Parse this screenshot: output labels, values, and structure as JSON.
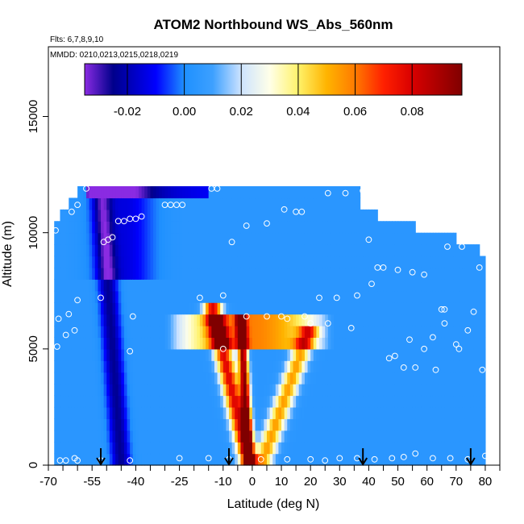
{
  "chart_data": {
    "type": "heatmap",
    "title": "ATOM2 Northbound WS_Abs_560nm",
    "subtitle": "Flts: 6,7,8,9,10",
    "annotation": "MMDD: 0210,0213,0215,0218,0219",
    "xlabel": "Latitude (deg N)",
    "ylabel": "Altitude (m)",
    "xlim": [
      -70,
      85
    ],
    "ylim": [
      0,
      18000
    ],
    "x_ticks": [
      "-70",
      "-55",
      "-40",
      "-25",
      "-10",
      "0",
      "10",
      "20",
      "30",
      "40",
      "50",
      "60",
      "70",
      "80"
    ],
    "x_tick_values": [
      -70,
      -55,
      -40,
      -25,
      -10,
      0,
      10,
      20,
      30,
      40,
      50,
      60,
      70,
      80
    ],
    "x_minor_ticks": [
      -65,
      -60,
      -50,
      -45,
      -35,
      -30,
      -20,
      -15,
      -5,
      5,
      15,
      25,
      35,
      45,
      55,
      65,
      75,
      85
    ],
    "y_ticks": [
      "0",
      "5000",
      "10000",
      "15000"
    ],
    "y_tick_values": [
      0,
      5000,
      10000,
      15000
    ],
    "colorbar": {
      "range": [
        -0.035,
        0.0975
      ],
      "ticks": [
        "-0.02",
        "0.00",
        "0.02",
        "0.04",
        "0.06",
        "0.08"
      ],
      "tick_values": [
        -0.02,
        0.0,
        0.02,
        0.04,
        0.06,
        0.08
      ],
      "lines": [
        -0.02,
        0.0,
        0.02,
        0.04,
        0.06,
        0.08
      ],
      "stops": [
        {
          "v": -0.035,
          "color": "#8a2be2"
        },
        {
          "v": -0.025,
          "color": "#00008b"
        },
        {
          "v": -0.01,
          "color": "#0000ff"
        },
        {
          "v": 0.0,
          "color": "#1e90ff"
        },
        {
          "v": 0.01,
          "color": "#3da0ff"
        },
        {
          "v": 0.02,
          "color": "#cde3ff"
        },
        {
          "v": 0.03,
          "color": "#ffffe8"
        },
        {
          "v": 0.04,
          "color": "#fff26a"
        },
        {
          "v": 0.05,
          "color": "#ffb400"
        },
        {
          "v": 0.06,
          "color": "#ff7a00"
        },
        {
          "v": 0.07,
          "color": "#ff2000"
        },
        {
          "v": 0.08,
          "color": "#d90000"
        },
        {
          "v": 0.0975,
          "color": "#800000"
        }
      ]
    },
    "arrow_latitudes": [
      -52,
      -8,
      38,
      75
    ],
    "grid": false,
    "legend": "colorbar top",
    "data_coverage": {
      "lat_min": -68,
      "lat_max": 80,
      "alt_bins_top": [
        {
          "lat_from": -68,
          "lat_to": -66,
          "top": 10500
        },
        {
          "lat_from": -66,
          "lat_to": -63,
          "top": 11000
        },
        {
          "lat_from": -63,
          "lat_to": -60,
          "top": 11500
        },
        {
          "lat_from": -60,
          "lat_to": 37,
          "top": 12000
        },
        {
          "lat_from": 37,
          "lat_to": 43,
          "top": 11000
        },
        {
          "lat_from": 43,
          "lat_to": 56,
          "top": 10500
        },
        {
          "lat_from": 56,
          "lat_to": 70,
          "top": 10000
        },
        {
          "lat_from": 70,
          "lat_to": 78,
          "top": 9500
        },
        {
          "lat_from": 78,
          "lat_to": 80,
          "top": 9000
        }
      ]
    },
    "features": [
      {
        "name": "southern negative plume",
        "kind": "neg",
        "lat_center_at_0": -45,
        "lat_center_at_top": -52,
        "width": 3.2,
        "amplitude": -0.028,
        "alt_max": 12000
      },
      {
        "name": "upper-southern negative patch",
        "kind": "neg2",
        "lat_center": -44,
        "lat_width": 10,
        "alt_from": 8000,
        "alt_to": 12000,
        "amplitude": -0.018
      },
      {
        "name": "topmost purple band",
        "kind": "neg3",
        "lat_from": -57,
        "lat_to": -15,
        "alt_from": 11400,
        "alt_to": 12000,
        "amplitude": -0.03
      },
      {
        "name": "tropical positive V plume left arm",
        "kind": "pos",
        "lat_at_0": -1,
        "lat_at_top": -14,
        "alt_max": 7000,
        "width": 3.0,
        "amplitude": 0.075
      },
      {
        "name": "tropical positive core",
        "kind": "pos",
        "lat_at_0": -1,
        "lat_at_top": -4,
        "alt_max": 6500,
        "width": 1.6,
        "amplitude": 0.09
      },
      {
        "name": "tropical positive V plume right arm",
        "kind": "pos",
        "lat_at_0": 3,
        "lat_at_top": 20,
        "alt_max": 6000,
        "width": 3.2,
        "amplitude": 0.05
      },
      {
        "name": "mid-level warm layer",
        "kind": "layer",
        "lat_from": -30,
        "lat_to": 28,
        "alt_from": 5000,
        "alt_to": 6500,
        "amplitude": 0.055
      }
    ],
    "points": [
      {
        "x": -67.5,
        "y": 10100
      },
      {
        "x": -67,
        "y": 5100
      },
      {
        "x": -66.5,
        "y": 6300
      },
      {
        "x": -66,
        "y": 200
      },
      {
        "x": -64,
        "y": 200
      },
      {
        "x": -64,
        "y": 5600
      },
      {
        "x": -63,
        "y": 6500
      },
      {
        "x": -62,
        "y": 10900
      },
      {
        "x": -61,
        "y": 5800
      },
      {
        "x": -60,
        "y": 7100
      },
      {
        "x": -60,
        "y": 11200
      },
      {
        "x": -61,
        "y": 300
      },
      {
        "x": -57,
        "y": 11900
      },
      {
        "x": -52,
        "y": 7200
      },
      {
        "x": -51,
        "y": 9600
      },
      {
        "x": -49.5,
        "y": 9700
      },
      {
        "x": -48,
        "y": 9800
      },
      {
        "x": -46,
        "y": 10500
      },
      {
        "x": -44,
        "y": 10500
      },
      {
        "x": -42,
        "y": 10600
      },
      {
        "x": -40,
        "y": 10600
      },
      {
        "x": -38,
        "y": 10700
      },
      {
        "x": -42,
        "y": 4900
      },
      {
        "x": -41,
        "y": 6400
      },
      {
        "x": -42,
        "y": 200
      },
      {
        "x": -30,
        "y": 11200
      },
      {
        "x": -28,
        "y": 11200
      },
      {
        "x": -26,
        "y": 11200
      },
      {
        "x": -24,
        "y": 11200
      },
      {
        "x": -18,
        "y": 7200
      },
      {
        "x": -14,
        "y": 11900
      },
      {
        "x": -12,
        "y": 11900
      },
      {
        "x": -10,
        "y": 7300
      },
      {
        "x": -10,
        "y": 5000
      },
      {
        "x": -7,
        "y": 9600
      },
      {
        "x": -2,
        "y": 10300
      },
      {
        "x": -2,
        "y": 6400
      },
      {
        "x": 5,
        "y": 10400
      },
      {
        "x": 5,
        "y": 6400
      },
      {
        "x": 10,
        "y": 6400
      },
      {
        "x": 12,
        "y": 6300
      },
      {
        "x": 11,
        "y": 11000
      },
      {
        "x": 15,
        "y": 10900
      },
      {
        "x": 17,
        "y": 10900
      },
      {
        "x": 18,
        "y": 6400
      },
      {
        "x": 20,
        "y": 6100
      },
      {
        "x": 23,
        "y": 7200
      },
      {
        "x": 26,
        "y": 11700
      },
      {
        "x": 26,
        "y": 6100
      },
      {
        "x": 29,
        "y": 7200
      },
      {
        "x": 32,
        "y": 11700
      },
      {
        "x": 34,
        "y": 5900
      },
      {
        "x": 36,
        "y": 7300
      },
      {
        "x": 38,
        "y": 11800
      },
      {
        "x": 40,
        "y": 9700
      },
      {
        "x": 41,
        "y": 7800
      },
      {
        "x": 43,
        "y": 8500
      },
      {
        "x": 45,
        "y": 8500
      },
      {
        "x": 47,
        "y": 4600
      },
      {
        "x": 49,
        "y": 4700
      },
      {
        "x": 50,
        "y": 8400
      },
      {
        "x": 52,
        "y": 4200
      },
      {
        "x": 54,
        "y": 5400
      },
      {
        "x": 55,
        "y": 8300
      },
      {
        "x": 56,
        "y": 4200
      },
      {
        "x": 59,
        "y": 8200
      },
      {
        "x": 59,
        "y": 5000
      },
      {
        "x": 62,
        "y": 5500
      },
      {
        "x": 63,
        "y": 4100
      },
      {
        "x": 65,
        "y": 6700
      },
      {
        "x": 66,
        "y": 6700
      },
      {
        "x": 66,
        "y": 6100
      },
      {
        "x": 67,
        "y": 9400
      },
      {
        "x": 70,
        "y": 5200
      },
      {
        "x": 71,
        "y": 5000
      },
      {
        "x": 72,
        "y": 9400
      },
      {
        "x": 74,
        "y": 5800
      },
      {
        "x": 76,
        "y": 6600
      },
      {
        "x": 78,
        "y": 8500
      },
      {
        "x": 79,
        "y": 4100
      },
      {
        "x": 80,
        "y": 400
      },
      {
        "x": -60,
        "y": 200
      },
      {
        "x": -52,
        "y": 200
      },
      {
        "x": -25,
        "y": 300
      },
      {
        "x": -15,
        "y": 300
      },
      {
        "x": -8,
        "y": 250
      },
      {
        "x": 3,
        "y": 250
      },
      {
        "x": 12,
        "y": 250
      },
      {
        "x": 20,
        "y": 250
      },
      {
        "x": 25,
        "y": 200
      },
      {
        "x": 30,
        "y": 300
      },
      {
        "x": 36,
        "y": 300
      },
      {
        "x": 42,
        "y": 250
      },
      {
        "x": 48,
        "y": 300
      },
      {
        "x": 52,
        "y": 350
      },
      {
        "x": 56,
        "y": 500
      },
      {
        "x": 62,
        "y": 300
      },
      {
        "x": 68,
        "y": 300
      },
      {
        "x": 74,
        "y": 250
      }
    ]
  }
}
